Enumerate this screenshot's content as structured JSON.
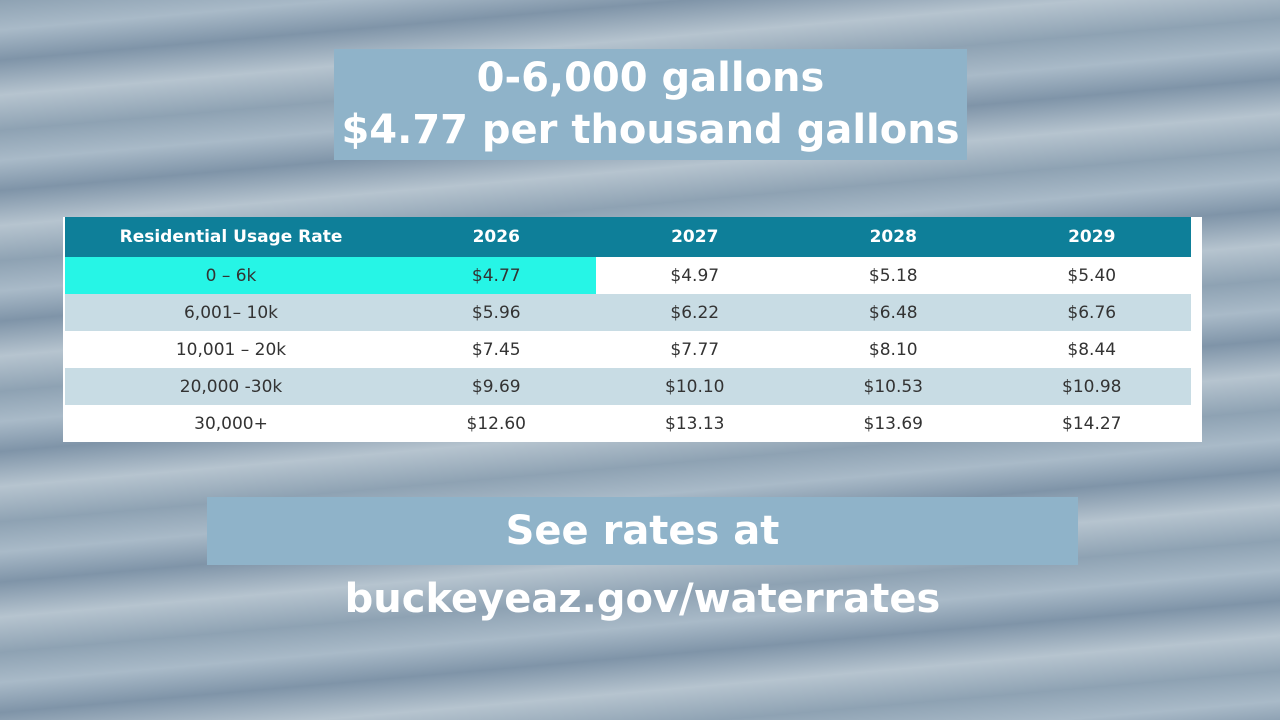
{
  "header": {
    "lines": [
      "0-6,000 gallons",
      "$4.77 per thousand gallons"
    ]
  },
  "table": {
    "columns": [
      "Residential Usage Rate",
      "2026",
      "2027",
      "2028",
      "2029"
    ],
    "rows": [
      [
        "0 – 6k",
        "$4.77",
        "$4.97",
        "$5.18",
        "$5.40"
      ],
      [
        "6,001– 10k",
        "$5.96",
        "$6.22",
        "$6.48",
        "$6.76"
      ],
      [
        "10,001 – 20k",
        "$7.45",
        "$7.77",
        "$8.10",
        "$8.44"
      ],
      [
        "20,000 -30k",
        "$9.69",
        "$10.10",
        "$10.53",
        "$10.98"
      ],
      [
        "30,000+",
        "$12.60",
        "$13.13",
        "$13.69",
        "$14.27"
      ]
    ]
  },
  "footer": {
    "text": "See rates at buckeyeaz.gov/waterrates"
  }
}
